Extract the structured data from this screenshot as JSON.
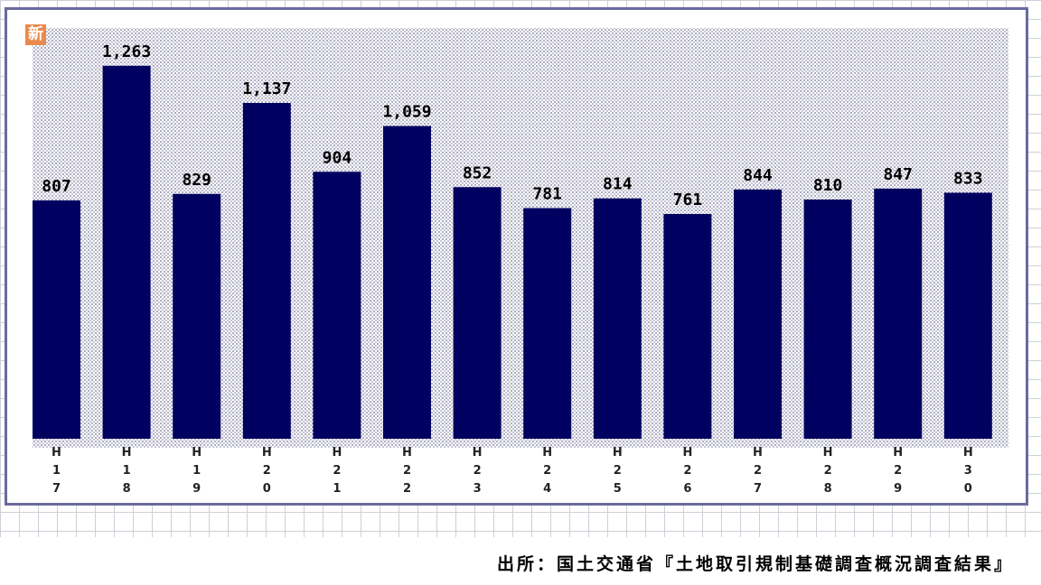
{
  "chart_data": {
    "type": "bar",
    "badge": "新",
    "categories": [
      "H17",
      "H18",
      "H19",
      "H20",
      "H21",
      "H22",
      "H23",
      "H24",
      "H25",
      "H26",
      "H27",
      "H28",
      "H29",
      "H30"
    ],
    "category_tick_lines": [
      [
        "H",
        "1",
        "7"
      ],
      [
        "H",
        "1",
        "8"
      ],
      [
        "H",
        "1",
        "9"
      ],
      [
        "H",
        "2",
        "0"
      ],
      [
        "H",
        "2",
        "1"
      ],
      [
        "H",
        "2",
        "2"
      ],
      [
        "H",
        "2",
        "3"
      ],
      [
        "H",
        "2",
        "4"
      ],
      [
        "H",
        "2",
        "5"
      ],
      [
        "H",
        "2",
        "6"
      ],
      [
        "H",
        "2",
        "7"
      ],
      [
        "H",
        "2",
        "8"
      ],
      [
        "H",
        "2",
        "9"
      ],
      [
        "H",
        "3",
        "0"
      ]
    ],
    "values": [
      807,
      1263,
      829,
      1137,
      904,
      1059,
      852,
      781,
      814,
      761,
      844,
      810,
      847,
      833
    ],
    "value_labels": [
      "807",
      "1,263",
      "829",
      "1,137",
      "904",
      "1,059",
      "852",
      "781",
      "814",
      "761",
      "844",
      "810",
      "847",
      "833"
    ],
    "ylim": [
      0,
      1400
    ],
    "bar_color": "#000060",
    "grid": false,
    "legend": "none"
  },
  "source": "出所：国土交通省『土地取引規制基礎調査概況調査結果』"
}
